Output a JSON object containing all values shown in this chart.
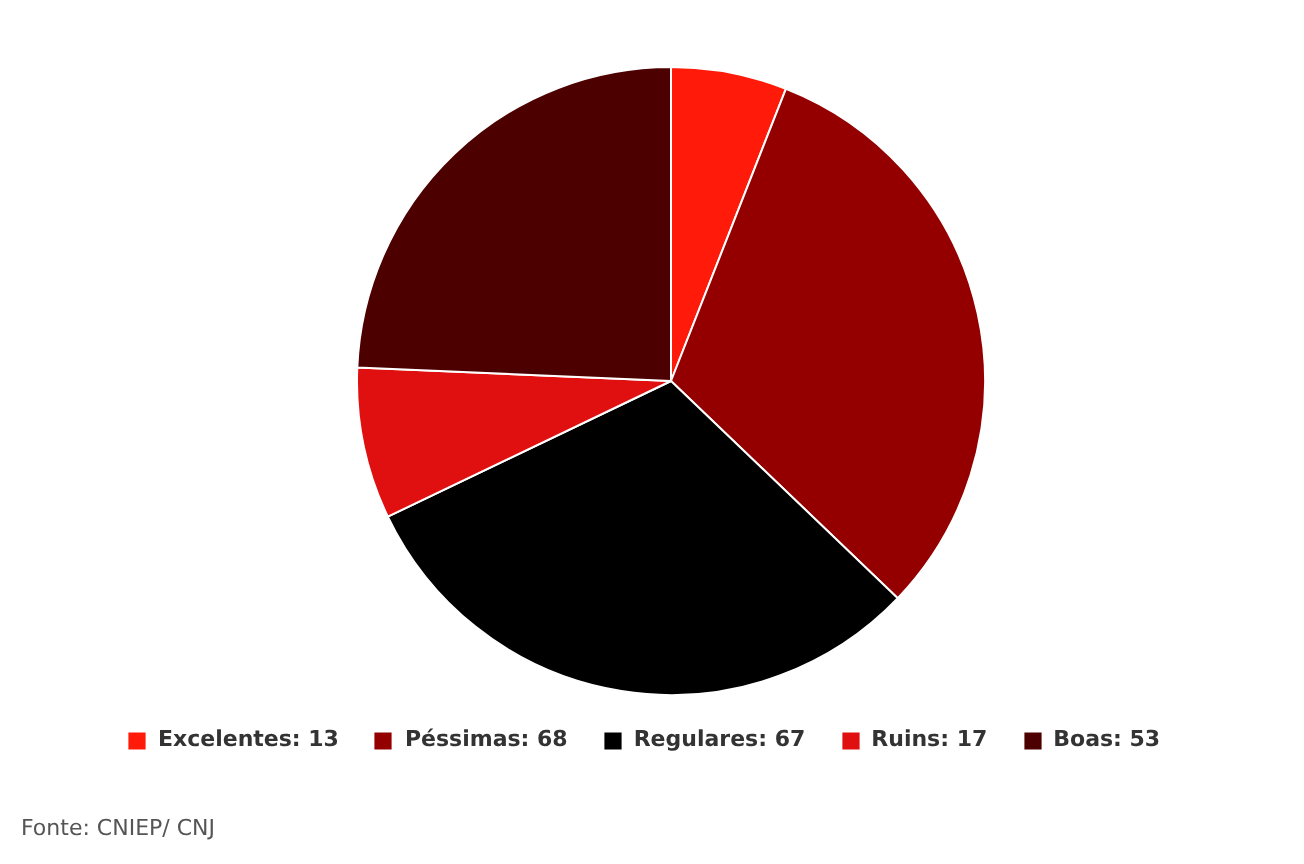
{
  "chart_data": {
    "type": "pie",
    "categories": [
      "Excelentes: 13",
      "Péssimas: 68",
      "Regulares: 67",
      "Ruins: 17",
      "Boas: 53"
    ],
    "values": [
      13,
      68,
      67,
      17,
      53
    ],
    "colors": [
      "#ff1a0a",
      "#940000",
      "#000000",
      "#e01010",
      "#4d0000"
    ],
    "legend": "bottom",
    "annotations": [
      "Fonte: CNIEP/ CNJ"
    ]
  }
}
